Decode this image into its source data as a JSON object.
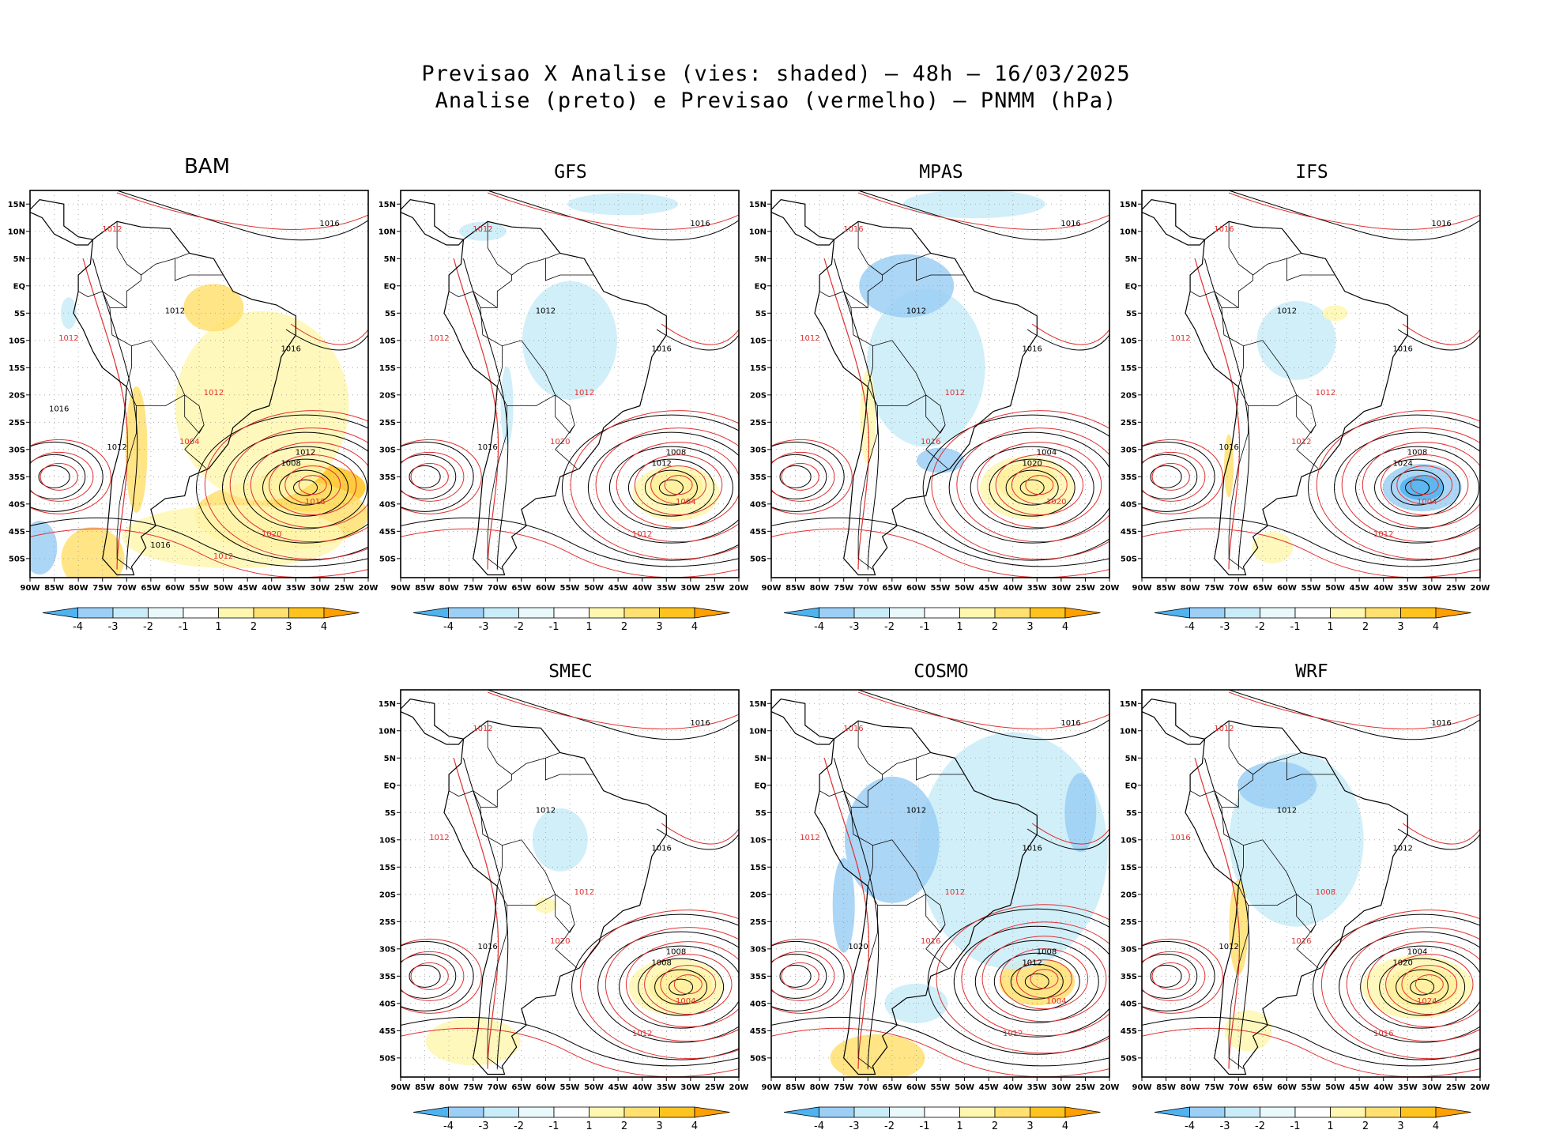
{
  "title": {
    "line1": "Previsao X Analise (vies: shaded) – 48h – 16/03/2025",
    "line2": "Analise (preto) e Previsao (vermelho) – PNMM (hPa)"
  },
  "axes": {
    "lat_labels": [
      "15N",
      "10N",
      "5N",
      "EQ",
      "5S",
      "10S",
      "15S",
      "20S",
      "25S",
      "30S",
      "35S",
      "40S",
      "45S",
      "50S"
    ],
    "lon_labels": [
      "90W",
      "85W",
      "80W",
      "75W",
      "70W",
      "65W",
      "60W",
      "55W",
      "50W",
      "45W",
      "40W",
      "35W",
      "30W",
      "25W",
      "20W"
    ]
  },
  "colorbar": {
    "ticks": [
      "-4",
      "-3",
      "-2",
      "-1",
      "1",
      "2",
      "3",
      "4"
    ],
    "colors": [
      "#4fb3f0",
      "#9ccff5",
      "#c9ecf8",
      "#e8f8fb",
      "#ffffff",
      "#fff7b0",
      "#ffe070",
      "#ffc31f",
      "#ff9f00"
    ]
  },
  "colors": {
    "analysis": "#000000",
    "forecast": "#e03030",
    "frame": "#000000"
  },
  "panels": [
    {
      "name": "BAM",
      "labels": [
        "1016",
        "1012",
        "1012",
        "1012",
        "1016",
        "1012",
        "1012",
        "1016",
        "1008",
        "1004",
        "1012",
        "1020",
        "1016",
        "1012",
        "1016"
      ]
    },
    {
      "name": "GFS",
      "labels": [
        "1016",
        "1012",
        "1012",
        "1012",
        "1016",
        "1012",
        "1008",
        "1004",
        "1012",
        "1020",
        "1016",
        "1012"
      ]
    },
    {
      "name": "MPAS",
      "labels": [
        "1016",
        "1016",
        "1012",
        "1012",
        "1016",
        "1012",
        "1004",
        "1020",
        "1020",
        "1016"
      ]
    },
    {
      "name": "IFS",
      "labels": [
        "1016",
        "1016",
        "1012",
        "1012",
        "1016",
        "1012",
        "1008",
        "1004",
        "1024",
        "1012",
        "1016",
        "1012"
      ]
    },
    {
      "name": "SMEC",
      "labels": [
        "1016",
        "1012",
        "1012",
        "1012",
        "1016",
        "1012",
        "1008",
        "1004",
        "1008",
        "1020",
        "1016",
        "1012"
      ]
    },
    {
      "name": "COSMO",
      "labels": [
        "1016",
        "1016",
        "1012",
        "1012",
        "1016",
        "1012",
        "1008",
        "1004",
        "1012",
        "1016",
        "1020",
        "1012"
      ]
    },
    {
      "name": "WRF",
      "labels": [
        "1016",
        "1012",
        "1012",
        "1016",
        "1012",
        "1008",
        "1004",
        "1024",
        "1020",
        "1016",
        "1012",
        "1016"
      ]
    }
  ]
}
